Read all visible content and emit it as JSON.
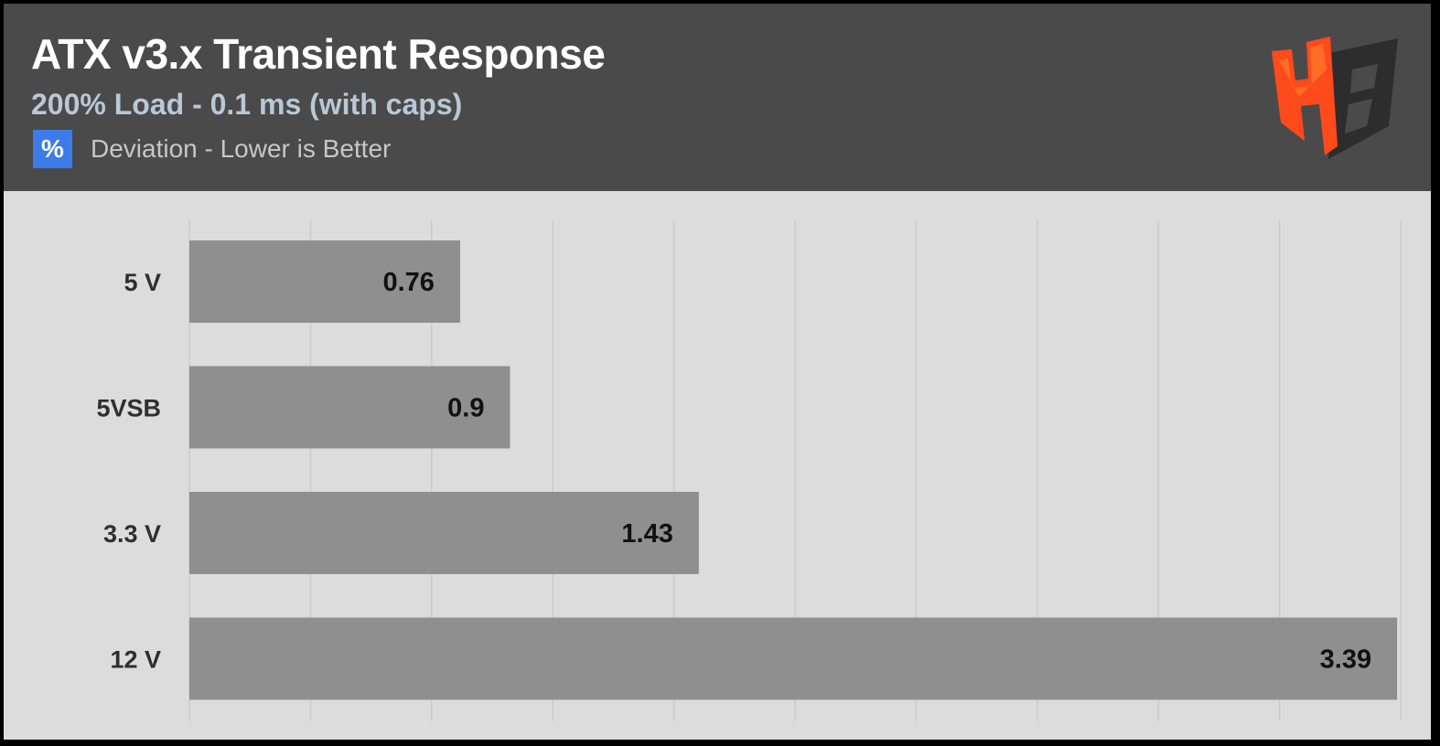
{
  "header": {
    "title": "ATX v3.x Transient Response",
    "subtitle": "200% Load - 0.1 ms (with caps)",
    "unit_symbol": "%",
    "metric": "Deviation - Lower is Better"
  },
  "colors": {
    "header_bg": "#4a4a4a",
    "plot_bg": "#dcdcdc",
    "bar": "#8f8f8f",
    "unit_badge": "#3d7be8",
    "logo_orange": "#ff4a1c",
    "logo_dark": "#2d2d2d"
  },
  "logo": {
    "icon": "hb-logo-icon"
  },
  "chart_data": {
    "type": "bar",
    "orientation": "horizontal",
    "categories": [
      "5 V",
      "5VSB",
      "3.3 V",
      "12 V"
    ],
    "values": [
      0.76,
      0.9,
      1.43,
      3.39
    ],
    "value_labels": [
      "0.76",
      "0.9",
      "1.43",
      "3.39"
    ],
    "xlim": [
      0,
      3.4
    ],
    "grid": true,
    "legend": "none"
  }
}
